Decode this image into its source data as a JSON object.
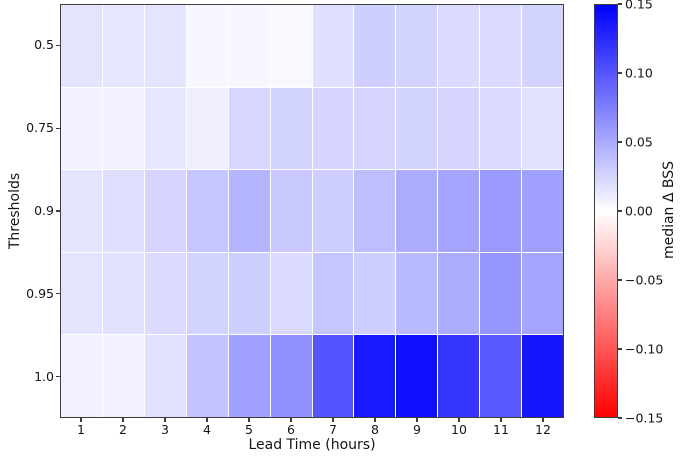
{
  "figure": {
    "background_color": "#ffffff",
    "spine_color": "#3d3d3d",
    "text_color": "#151515"
  },
  "chart_data": {
    "type": "heatmap",
    "title": "",
    "xlabel": "Lead Time (hours)",
    "ylabel": "Thresholds",
    "x_categories": [
      "1",
      "2",
      "3",
      "4",
      "5",
      "6",
      "7",
      "8",
      "9",
      "10",
      "11",
      "12"
    ],
    "y_categories": [
      "0.5",
      "0.75",
      "0.9",
      "0.95",
      "1.0"
    ],
    "values": [
      [
        0.016,
        0.014,
        0.016,
        0.005,
        0.005,
        0.004,
        0.019,
        0.029,
        0.026,
        0.021,
        0.022,
        0.026
      ],
      [
        0.008,
        0.009,
        0.014,
        0.01,
        0.024,
        0.026,
        0.025,
        0.025,
        0.026,
        0.025,
        0.022,
        0.018
      ],
      [
        0.016,
        0.019,
        0.025,
        0.034,
        0.044,
        0.032,
        0.029,
        0.038,
        0.049,
        0.053,
        0.059,
        0.056
      ],
      [
        0.016,
        0.018,
        0.022,
        0.026,
        0.029,
        0.021,
        0.034,
        0.029,
        0.041,
        0.049,
        0.062,
        0.053
      ],
      [
        0.009,
        0.008,
        0.018,
        0.035,
        0.056,
        0.065,
        0.1,
        0.135,
        0.141,
        0.118,
        0.098,
        0.138
      ]
    ],
    "vmin": -0.15,
    "vmax": 0.15,
    "colormap": {
      "name": "blue-white-red (bwr reversed)",
      "max_color": "#0000ff",
      "mid_color": "#ffffff",
      "min_color": "#ff0000"
    },
    "cell_gridline_color": "#ffffff",
    "grid": false,
    "colorbar": {
      "label": "median Δ BSS",
      "position": "right",
      "tick_labels": [
        "0.15",
        "0.10",
        "0.05",
        "0.00",
        "−0.05",
        "−0.10",
        "−0.15"
      ],
      "tick_values": [
        0.15,
        0.1,
        0.05,
        0.0,
        -0.05,
        -0.1,
        -0.15
      ]
    }
  }
}
